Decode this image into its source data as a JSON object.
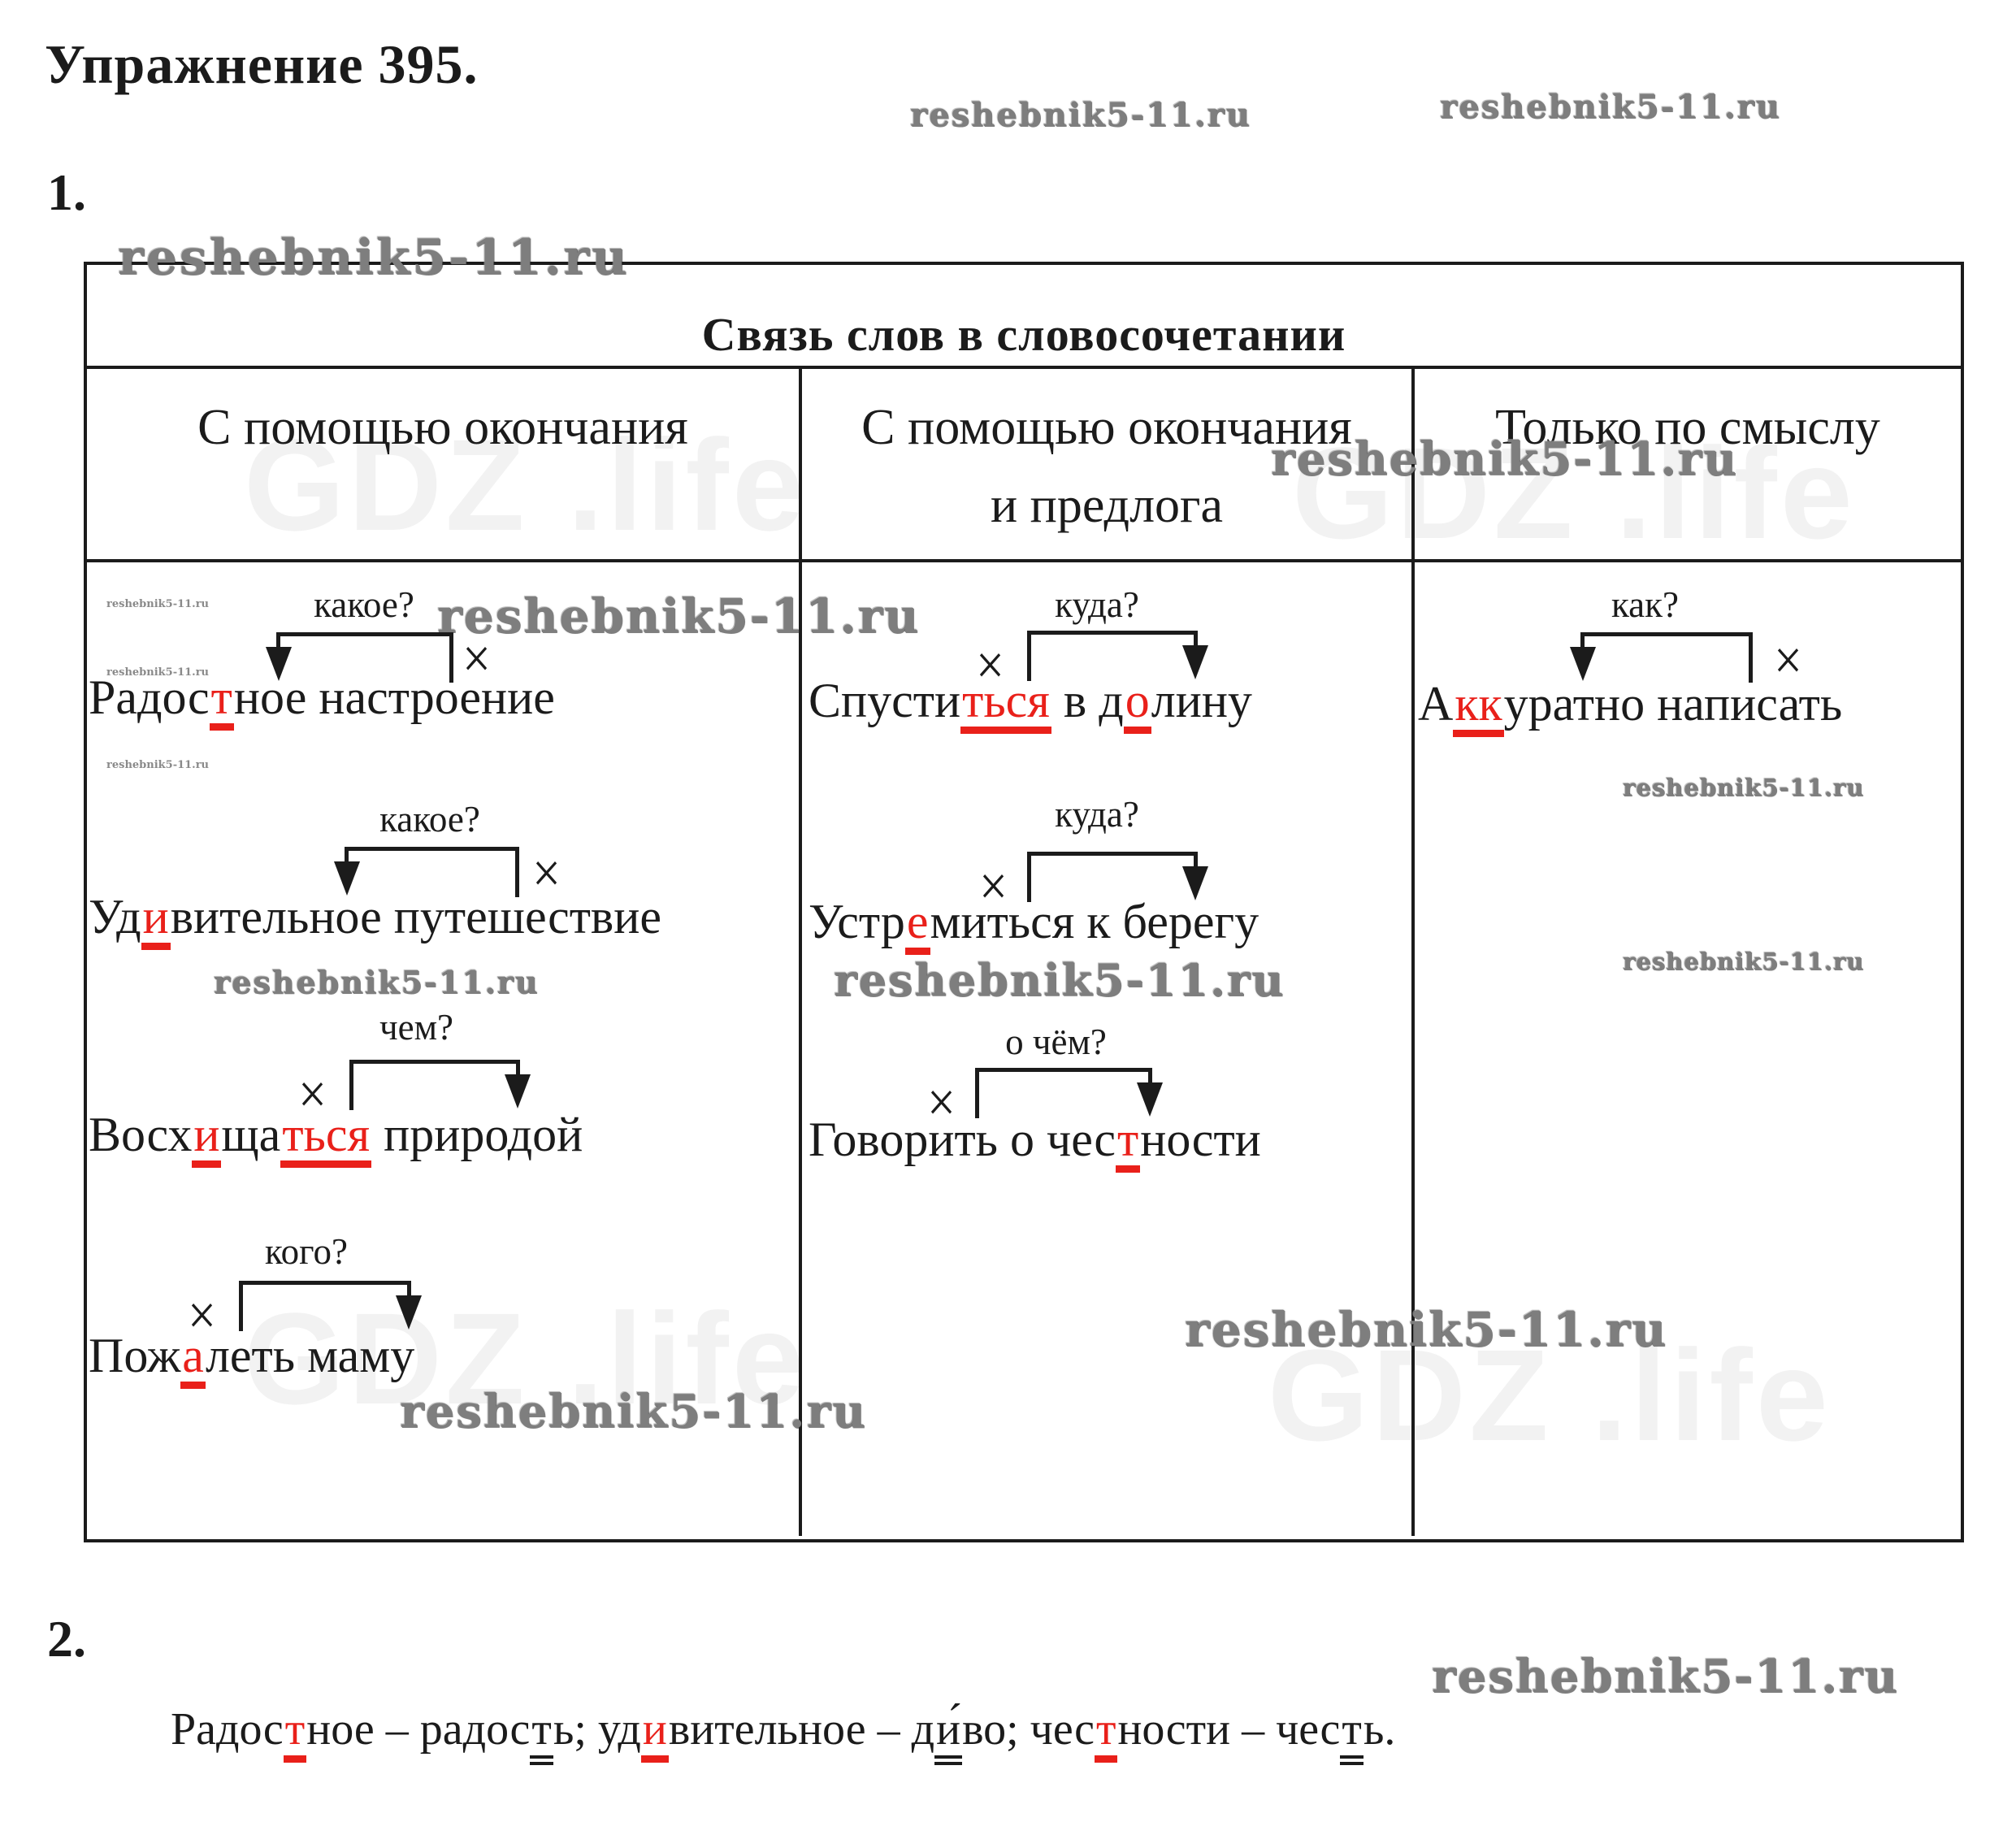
{
  "page": {
    "title": "Упражнение 395.",
    "part1": "1.",
    "part2": "2."
  },
  "brand": {
    "watermark": "reshebnik5-11.ru",
    "background_watermark": "GDZ .life"
  },
  "table": {
    "title": "Связь слов в словосочетании",
    "head_marker": "×",
    "columns": [
      {
        "header_lines": [
          "С помощью окончания"
        ],
        "examples": [
          {
            "question": "какое?",
            "arrow": "to-left",
            "segments": [
              {
                "t": "Радос"
              },
              {
                "t": "т",
                "red": true,
                "u": "red"
              },
              {
                "t": "ное настроение"
              }
            ]
          },
          {
            "question": "какое?",
            "arrow": "to-left",
            "segments": [
              {
                "t": "Уд"
              },
              {
                "t": "и",
                "red": true,
                "u": "red"
              },
              {
                "t": "вительное путешествие"
              }
            ]
          },
          {
            "question": "чем?",
            "arrow": "to-right",
            "segments": [
              {
                "t": "Восх"
              },
              {
                "t": "и",
                "red": true,
                "u": "red"
              },
              {
                "t": "ща"
              },
              {
                "t": "ться",
                "red": true,
                "u": "red"
              },
              {
                "t": " природой"
              }
            ]
          },
          {
            "question": "кого?",
            "arrow": "to-right",
            "segments": [
              {
                "t": "Пож"
              },
              {
                "t": "а",
                "red": true,
                "u": "red"
              },
              {
                "t": "леть маму"
              }
            ]
          }
        ]
      },
      {
        "header_lines": [
          "С помощью окончания",
          "и предлога"
        ],
        "examples": [
          {
            "question": "куда?",
            "arrow": "to-right",
            "segments": [
              {
                "t": "Спусти"
              },
              {
                "t": "ться",
                "red": true,
                "u": "red"
              },
              {
                "t": " в д"
              },
              {
                "t": "о",
                "red": true,
                "u": "red"
              },
              {
                "t": "лину"
              }
            ]
          },
          {
            "question": "куда?",
            "arrow": "to-right",
            "segments": [
              {
                "t": "Устр"
              },
              {
                "t": "е",
                "red": true,
                "u": "red"
              },
              {
                "t": "миться к берегу"
              }
            ]
          },
          {
            "question": "о чём?",
            "arrow": "to-right",
            "segments": [
              {
                "t": "Говорить о чес"
              },
              {
                "t": "т",
                "red": true,
                "u": "red"
              },
              {
                "t": "ности"
              }
            ]
          }
        ]
      },
      {
        "header_lines": [
          "Только по смыслу"
        ],
        "examples": [
          {
            "question": "как?",
            "arrow": "to-left",
            "segments": [
              {
                "t": "А"
              },
              {
                "t": "кк",
                "red": true,
                "u": "red"
              },
              {
                "t": "уратно написать"
              }
            ]
          }
        ]
      }
    ]
  },
  "answer": {
    "segments": [
      {
        "t": "Радос"
      },
      {
        "t": "т",
        "red": true,
        "u": "red"
      },
      {
        "t": "ное – радос"
      },
      {
        "t": "т",
        "u": "dbl"
      },
      {
        "t": "ь; уд"
      },
      {
        "t": "и",
        "red": true,
        "u": "red"
      },
      {
        "t": "вительное – д"
      },
      {
        "t": "и́",
        "u": "dbl"
      },
      {
        "t": "во; чес"
      },
      {
        "t": "т",
        "red": true,
        "u": "red"
      },
      {
        "t": "ности – чес"
      },
      {
        "t": "т",
        "u": "dbl"
      },
      {
        "t": "ь."
      }
    ]
  }
}
